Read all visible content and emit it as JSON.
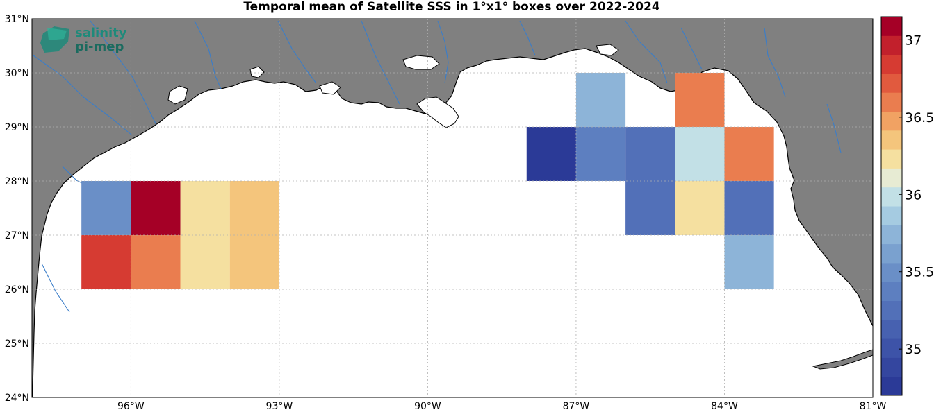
{
  "title": "Temporal mean of Satellite SSS in 1°x1° boxes over 2022-2024",
  "logo": {
    "line1": "salinity",
    "line2": "pi-mep"
  },
  "colors": {
    "land": "#808080",
    "ocean": "#ffffff",
    "rivers": "#3a7dc9",
    "coast": "#000000",
    "logo": "#1e8a7a"
  },
  "map": {
    "lon_range": [
      -98,
      -81
    ],
    "lat_range": [
      24,
      31
    ],
    "lon_ticks": [
      {
        "value": -96,
        "label": "96°W"
      },
      {
        "value": -93,
        "label": "93°W"
      },
      {
        "value": -90,
        "label": "90°W"
      },
      {
        "value": -87,
        "label": "87°W"
      },
      {
        "value": -84,
        "label": "84°W"
      },
      {
        "value": -81,
        "label": "81°W"
      }
    ],
    "lat_ticks": [
      {
        "value": 24,
        "label": "24°N"
      },
      {
        "value": 25,
        "label": "25°N"
      },
      {
        "value": 26,
        "label": "26°N"
      },
      {
        "value": 27,
        "label": "27°N"
      },
      {
        "value": 28,
        "label": "28°N"
      },
      {
        "value": 29,
        "label": "29°N"
      },
      {
        "value": 30,
        "label": "30°N"
      },
      {
        "value": 31,
        "label": "31°N"
      }
    ],
    "grid": true
  },
  "chart_data": {
    "type": "heatmap",
    "title": "Temporal mean of Satellite SSS in 1°x1° boxes over 2022-2024",
    "cell_size_deg": 1,
    "cells": [
      {
        "lon": -96.5,
        "lat": 27.5,
        "value": 35.5
      },
      {
        "lon": -95.5,
        "lat": 27.5,
        "value": 37.1
      },
      {
        "lon": -94.5,
        "lat": 27.5,
        "value": 36.2
      },
      {
        "lon": -93.5,
        "lat": 27.5,
        "value": 36.4
      },
      {
        "lon": -96.5,
        "lat": 26.5,
        "value": 36.9
      },
      {
        "lon": -95.5,
        "lat": 26.5,
        "value": 36.6
      },
      {
        "lon": -94.5,
        "lat": 26.5,
        "value": 36.2
      },
      {
        "lon": -93.5,
        "lat": 26.5,
        "value": 36.3
      },
      {
        "lon": -86.5,
        "lat": 29.5,
        "value": 35.8
      },
      {
        "lon": -87.5,
        "lat": 28.5,
        "value": 34.8
      },
      {
        "lon": -86.5,
        "lat": 28.5,
        "value": 35.4
      },
      {
        "lon": -85.5,
        "lat": 28.5,
        "value": 35.2
      },
      {
        "lon": -84.5,
        "lat": 28.5,
        "value": 36.0
      },
      {
        "lon": -83.5,
        "lat": 28.5,
        "value": 36.6
      },
      {
        "lon": -84.5,
        "lat": 29.5,
        "value": 36.6
      },
      {
        "lon": -85.5,
        "lat": 27.5,
        "value": 35.2
      },
      {
        "lon": -84.5,
        "lat": 27.5,
        "value": 36.2
      },
      {
        "lon": -83.5,
        "lat": 27.5,
        "value": 35.3
      },
      {
        "lon": -83.5,
        "lat": 26.5,
        "value": 35.7
      }
    ],
    "colorbar": {
      "min": 34.7,
      "max": 37.15,
      "ticks": [
        {
          "value": 35,
          "label": "35"
        },
        {
          "value": 35.5,
          "label": "35.5"
        },
        {
          "value": 36,
          "label": "36"
        },
        {
          "value": 36.5,
          "label": "36.5"
        },
        {
          "value": 37,
          "label": "37"
        }
      ],
      "colors": [
        "#2b3a97",
        "#34469f",
        "#3d53a8",
        "#4761b0",
        "#5270b8",
        "#5d7fc0",
        "#6a8fc7",
        "#7aa1cf",
        "#8db4d8",
        "#a5cbe1",
        "#c2e0e6",
        "#e7ebd3",
        "#f5e0a0",
        "#f4c57c",
        "#f1a263",
        "#ea7d4f",
        "#e15a3e",
        "#d63b32",
        "#c2202c",
        "#a50026"
      ]
    }
  }
}
